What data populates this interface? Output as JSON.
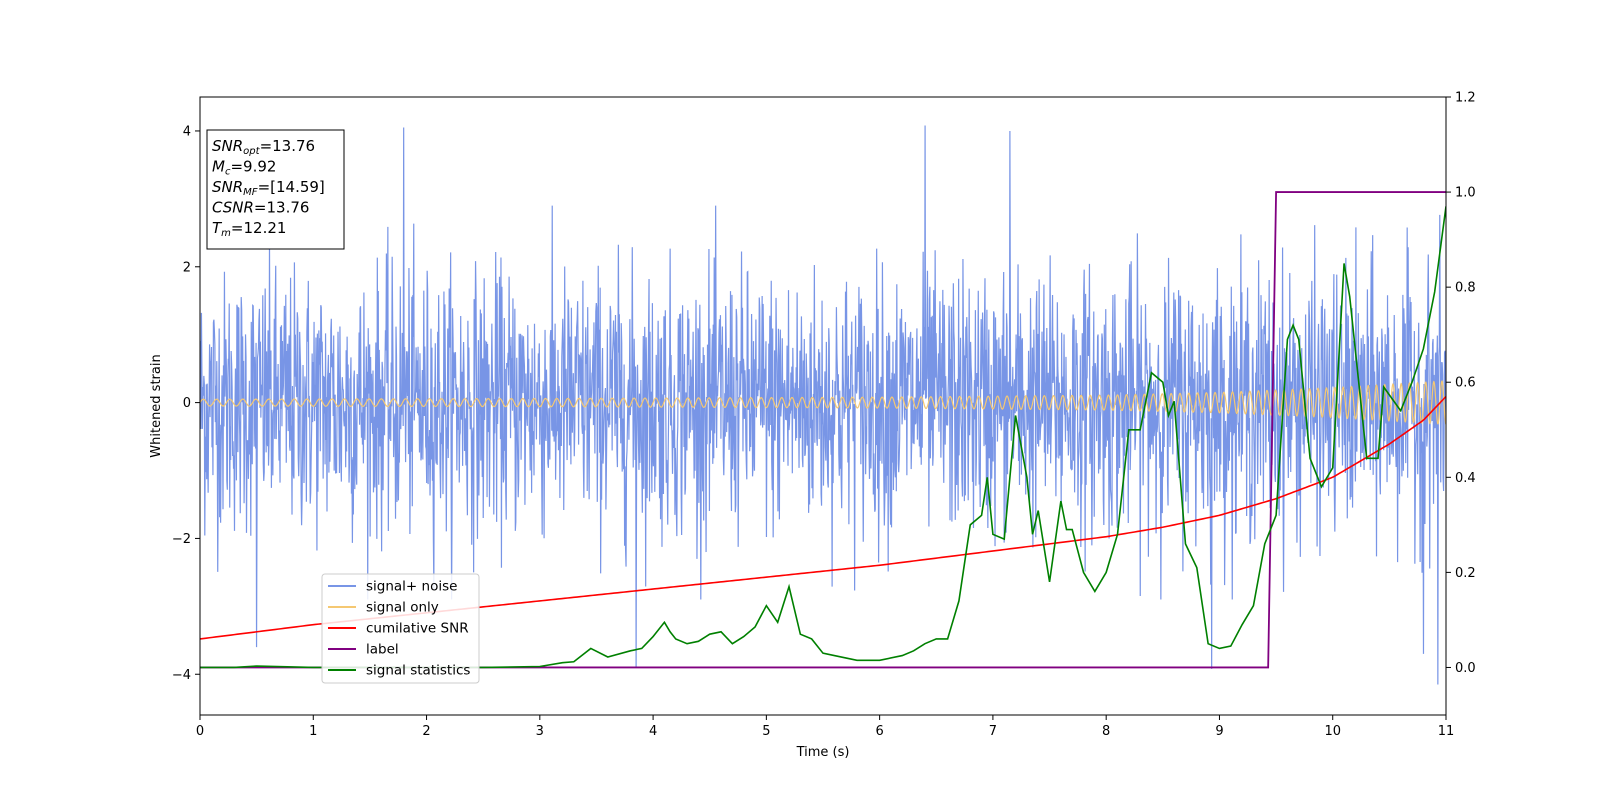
{
  "chart_data": {
    "type": "line",
    "title": "",
    "xlabel": "Time (s)",
    "ylabel": "Whitened strain",
    "xlim": [
      0,
      11
    ],
    "ylim": [
      -4.6,
      4.5
    ],
    "y2lim": [
      -0.1,
      1.2
    ],
    "x_ticks": [
      0,
      1,
      2,
      3,
      4,
      5,
      6,
      7,
      8,
      9,
      10,
      11
    ],
    "y_ticks": [
      -4,
      -2,
      0,
      2,
      4
    ],
    "y2_ticks": [
      0.0,
      0.2,
      0.4,
      0.6,
      0.8,
      1.0,
      1.2
    ],
    "x_tick_labels": [
      "0",
      "1",
      "2",
      "3",
      "4",
      "5",
      "6",
      "7",
      "8",
      "9",
      "10",
      "11"
    ],
    "y_tick_labels": [
      "−4",
      "−2",
      "0",
      "2",
      "4"
    ],
    "y2_tick_labels": [
      "0.0",
      "0.2",
      "0.4",
      "0.6",
      "0.8",
      "1.0",
      "1.2"
    ],
    "grid": false,
    "legend_position": "lower-left",
    "annotation": {
      "lines": [
        {
          "main": "SNR",
          "sub": "opt",
          "rest": "=13.76"
        },
        {
          "main": "M",
          "sub": "c",
          "rest": "=9.92"
        },
        {
          "main": "SNR",
          "sub": "MF",
          "rest": "=[14.59]"
        },
        {
          "main": "CSNR",
          "sub": "",
          "rest": "=13.76"
        },
        {
          "main": "T",
          "sub": "m",
          "rest": "=12.21"
        }
      ]
    },
    "series": [
      {
        "name": "signal+ noise",
        "color": "#7895e6",
        "axis": "left",
        "description_level": "noisy strain, roughly uniform amplitude ~±2.5 with spikes to ~±4",
        "amplitude_rms": 1.0,
        "spikes": [
          [
            1.8,
            4.05
          ],
          [
            6.4,
            4.08
          ],
          [
            7.15,
            4.0
          ],
          [
            0.5,
            -3.6
          ],
          [
            3.85,
            -3.9
          ],
          [
            8.93,
            -3.92
          ],
          [
            10.93,
            -4.15
          ],
          [
            10.8,
            -3.7
          ]
        ]
      },
      {
        "name": "signal only",
        "color": "#f5c872",
        "axis": "left",
        "envelope": {
          "x": [
            0,
            3,
            6,
            8,
            9,
            10,
            11
          ],
          "y": [
            0.05,
            0.06,
            0.08,
            0.11,
            0.15,
            0.22,
            0.32
          ]
        },
        "frequency_hz": {
          "start": 8.5,
          "end": 14
        }
      },
      {
        "name": "cumilative SNR",
        "color": "#ff0000",
        "axis": "right",
        "x": [
          0,
          1,
          2,
          3,
          4,
          5,
          6,
          7,
          8,
          8.5,
          9,
          9.5,
          10,
          10.5,
          10.8,
          11
        ],
        "y": [
          0.06,
          0.09,
          0.115,
          0.14,
          0.165,
          0.19,
          0.215,
          0.245,
          0.275,
          0.295,
          0.32,
          0.355,
          0.4,
          0.47,
          0.52,
          0.57
        ]
      },
      {
        "name": "label",
        "color": "#800080",
        "axis": "right",
        "x": [
          0,
          9.43,
          9.5,
          11
        ],
        "y": [
          0.0,
          0.0,
          1.0,
          1.0
        ]
      },
      {
        "name": "signal statistics",
        "color": "#008000",
        "axis": "right",
        "x": [
          0,
          0.3,
          0.5,
          1,
          2,
          2.5,
          3,
          3.2,
          3.3,
          3.45,
          3.6,
          3.8,
          3.9,
          4.0,
          4.1,
          4.15,
          4.2,
          4.3,
          4.4,
          4.5,
          4.6,
          4.7,
          4.8,
          4.9,
          5.0,
          5.1,
          5.2,
          5.3,
          5.4,
          5.5,
          5.6,
          5.7,
          5.8,
          6.0,
          6.2,
          6.3,
          6.4,
          6.5,
          6.6,
          6.7,
          6.8,
          6.9,
          6.95,
          7.0,
          7.1,
          7.2,
          7.3,
          7.35,
          7.4,
          7.5,
          7.6,
          7.65,
          7.7,
          7.8,
          7.9,
          8.0,
          8.1,
          8.2,
          8.3,
          8.4,
          8.5,
          8.55,
          8.6,
          8.7,
          8.8,
          8.9,
          9.0,
          9.1,
          9.2,
          9.3,
          9.4,
          9.5,
          9.6,
          9.65,
          9.7,
          9.8,
          9.9,
          10.0,
          10.1,
          10.15,
          10.3,
          10.4,
          10.45,
          10.6,
          10.7,
          10.8,
          10.9,
          11.0
        ],
        "y": [
          0.0,
          0.0,
          0.003,
          0.0,
          0.0,
          0.0,
          0.002,
          0.01,
          0.012,
          0.04,
          0.022,
          0.035,
          0.04,
          0.065,
          0.095,
          0.075,
          0.06,
          0.05,
          0.055,
          0.07,
          0.075,
          0.05,
          0.065,
          0.085,
          0.13,
          0.095,
          0.17,
          0.07,
          0.06,
          0.03,
          0.025,
          0.02,
          0.015,
          0.015,
          0.025,
          0.035,
          0.05,
          0.06,
          0.06,
          0.14,
          0.3,
          0.32,
          0.4,
          0.28,
          0.27,
          0.53,
          0.4,
          0.28,
          0.33,
          0.18,
          0.35,
          0.29,
          0.29,
          0.2,
          0.16,
          0.2,
          0.28,
          0.5,
          0.5,
          0.62,
          0.6,
          0.53,
          0.56,
          0.26,
          0.21,
          0.05,
          0.04,
          0.045,
          0.09,
          0.13,
          0.26,
          0.32,
          0.69,
          0.72,
          0.69,
          0.44,
          0.38,
          0.42,
          0.85,
          0.78,
          0.44,
          0.44,
          0.59,
          0.54,
          0.6,
          0.67,
          0.79,
          0.97
        ]
      }
    ]
  }
}
